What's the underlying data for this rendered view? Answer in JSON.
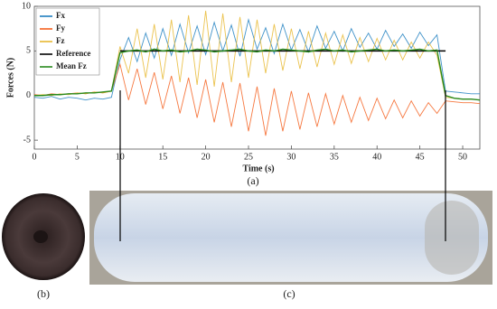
{
  "chart_data": {
    "type": "line",
    "xlabel": "Time (s)",
    "ylabel": "Forces (N)",
    "caption": "(a)",
    "x": [
      0,
      1,
      2,
      3,
      4,
      5,
      6,
      7,
      8,
      9,
      10,
      11,
      12,
      13,
      14,
      15,
      16,
      17,
      18,
      19,
      20,
      21,
      22,
      23,
      24,
      25,
      26,
      27,
      28,
      29,
      30,
      31,
      32,
      33,
      34,
      35,
      36,
      37,
      38,
      39,
      40,
      41,
      42,
      43,
      44,
      45,
      46,
      47,
      48,
      49,
      50,
      51,
      52
    ],
    "series": [
      {
        "name": "Fx",
        "color": "#1f7fc0",
        "values": [
          -0.2,
          -0.3,
          -0.1,
          -0.4,
          -0.2,
          -0.3,
          -0.5,
          -0.3,
          -0.4,
          -0.2,
          4.0,
          6.5,
          3.8,
          7.0,
          4.2,
          7.5,
          4.5,
          8.0,
          4.8,
          7.8,
          4.6,
          8.2,
          5.0,
          7.9,
          4.4,
          8.5,
          5.2,
          7.6,
          4.7,
          8.0,
          5.1,
          7.4,
          4.9,
          7.8,
          5.3,
          7.2,
          5.0,
          7.5,
          5.4,
          7.0,
          5.2,
          7.3,
          5.5,
          6.9,
          5.3,
          7.1,
          5.6,
          6.8,
          0.5,
          0.4,
          0.3,
          0.2,
          0.2
        ]
      },
      {
        "name": "Fy",
        "color": "#f5601e",
        "values": [
          0.1,
          0.0,
          0.2,
          0.1,
          0.2,
          0.3,
          0.2,
          0.4,
          0.3,
          0.5,
          3.5,
          -0.5,
          3.0,
          -1.0,
          2.6,
          -1.5,
          2.2,
          -2.0,
          2.0,
          -2.5,
          1.8,
          -3.0,
          1.5,
          -3.5,
          1.4,
          -4.0,
          1.0,
          -4.5,
          0.8,
          -4.0,
          0.5,
          -3.8,
          0.3,
          -3.5,
          0.2,
          -3.2,
          0.0,
          -3.0,
          -0.2,
          -2.8,
          -0.3,
          -2.6,
          -0.5,
          -2.5,
          -0.6,
          -2.3,
          -0.8,
          -2.0,
          -0.6,
          -0.7,
          -0.8,
          -0.8,
          -0.9
        ]
      },
      {
        "name": "Fz",
        "color": "#e8b830",
        "values": [
          0.0,
          0.1,
          0.0,
          0.2,
          0.1,
          0.3,
          0.2,
          0.4,
          0.3,
          0.5,
          5.5,
          2.5,
          7.5,
          2.0,
          8.0,
          1.8,
          8.5,
          1.5,
          9.0,
          1.2,
          9.5,
          1.0,
          9.2,
          1.5,
          8.8,
          2.0,
          8.5,
          2.5,
          8.0,
          2.8,
          7.5,
          3.0,
          7.2,
          3.2,
          7.0,
          3.5,
          6.8,
          3.6,
          6.5,
          3.8,
          6.4,
          4.0,
          6.2,
          4.0,
          6.0,
          4.2,
          6.0,
          4.5,
          -0.2,
          -0.3,
          -0.4,
          -0.4,
          -0.5
        ]
      },
      {
        "name": "Reference",
        "color": "#000000",
        "values": [
          null,
          null,
          null,
          null,
          null,
          null,
          null,
          null,
          null,
          null,
          5,
          5,
          5,
          5,
          5,
          5,
          5,
          5,
          5,
          5,
          5,
          5,
          5,
          5,
          5,
          5,
          5,
          5,
          5,
          5,
          5,
          5,
          5,
          5,
          5,
          5,
          5,
          5,
          5,
          5,
          5,
          5,
          5,
          5,
          5,
          5,
          5,
          5,
          5,
          null,
          null,
          null,
          null
        ]
      },
      {
        "name": "Mean Fz",
        "color": "#2a8a1e",
        "values": [
          0.0,
          0.0,
          0.1,
          0.1,
          0.2,
          0.2,
          0.3,
          0.3,
          0.4,
          0.5,
          4.8,
          5.0,
          5.1,
          4.9,
          5.2,
          5.0,
          5.1,
          4.9,
          5.0,
          5.2,
          5.1,
          4.9,
          5.0,
          5.1,
          5.2,
          5.0,
          4.9,
          5.1,
          5.0,
          5.2,
          5.1,
          5.0,
          4.9,
          5.1,
          5.2,
          5.0,
          5.1,
          4.9,
          5.0,
          5.1,
          5.2,
          5.0,
          5.1,
          5.0,
          5.1,
          5.2,
          5.0,
          5.1,
          0.0,
          -0.3,
          -0.4,
          -0.4,
          -0.5
        ]
      }
    ],
    "xlim": [
      0,
      52
    ],
    "ylim": [
      -6,
      10
    ],
    "xticks": [
      0,
      5,
      10,
      15,
      20,
      25,
      30,
      35,
      40,
      45,
      50
    ],
    "yticks": [
      -5,
      0,
      5,
      10
    ],
    "legend": "upper left"
  },
  "panels": [
    {
      "label": "(b)"
    },
    {
      "label": "(c)"
    }
  ]
}
